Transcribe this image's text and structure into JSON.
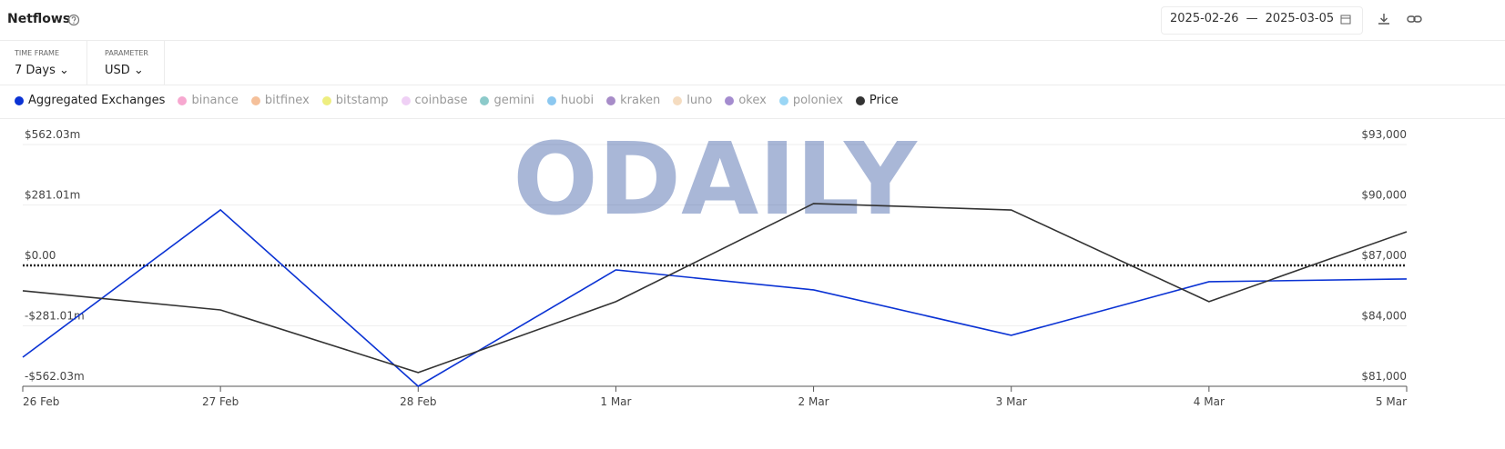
{
  "header": {
    "title": "Netflows",
    "date_from": "2025-02-26",
    "date_separator": "—",
    "date_to": "2025-03-05"
  },
  "controls": [
    {
      "label": "TIME FRAME",
      "value": "7 Days"
    },
    {
      "label": "PARAMETER",
      "value": "USD"
    }
  ],
  "watermark": "ODAILY",
  "chart_data": {
    "type": "line",
    "categories": [
      "26 Feb",
      "27 Feb",
      "28 Feb",
      "1 Mar",
      "2 Mar",
      "3 Mar",
      "4 Mar",
      "5 Mar"
    ],
    "series": [
      {
        "name": "Aggregated Exchanges",
        "color": "#0b33d4",
        "values": [
          -427,
          258,
          -562,
          -21,
          -114,
          -325,
          -76,
          -63
        ]
      },
      {
        "name": "Price",
        "color": "#333333",
        "axis": "y2",
        "values": [
          85740,
          84790,
          81680,
          85200,
          90070,
          89750,
          85200,
          88670
        ]
      }
    ],
    "inactive_series": [
      {
        "name": "binance",
        "color": "#f7a8d0"
      },
      {
        "name": "bitfinex",
        "color": "#f5c09a"
      },
      {
        "name": "bitstamp",
        "color": "#eeee80"
      },
      {
        "name": "coinbase",
        "color": "#efd0f5"
      },
      {
        "name": "gemini",
        "color": "#8ccaca"
      },
      {
        "name": "huobi",
        "color": "#8cc8f0"
      },
      {
        "name": "kraken",
        "color": "#a78cc8"
      },
      {
        "name": "luno",
        "color": "#f5dcc0"
      },
      {
        "name": "okex",
        "color": "#a48ccf"
      },
      {
        "name": "poloniex",
        "color": "#9ad6f5"
      }
    ],
    "ylim": [
      -562.03,
      562.03
    ],
    "yticks": [
      {
        "value": -562.03,
        "label": "-$562.03m"
      },
      {
        "value": -281.01,
        "label": "-$281.01m"
      },
      {
        "value": 0,
        "label": "$0.00"
      },
      {
        "value": 281.01,
        "label": "$281.01m"
      },
      {
        "value": 562.03,
        "label": "$562.03m"
      }
    ],
    "y2lim": [
      81000,
      93000
    ],
    "y2ticks": [
      {
        "value": 81000,
        "label": "$81,000"
      },
      {
        "value": 84000,
        "label": "$84,000"
      },
      {
        "value": 87000,
        "label": "$87,000"
      },
      {
        "value": 90000,
        "label": "$90,000"
      },
      {
        "value": 93000,
        "label": "$93,000"
      }
    ],
    "grid": true
  }
}
